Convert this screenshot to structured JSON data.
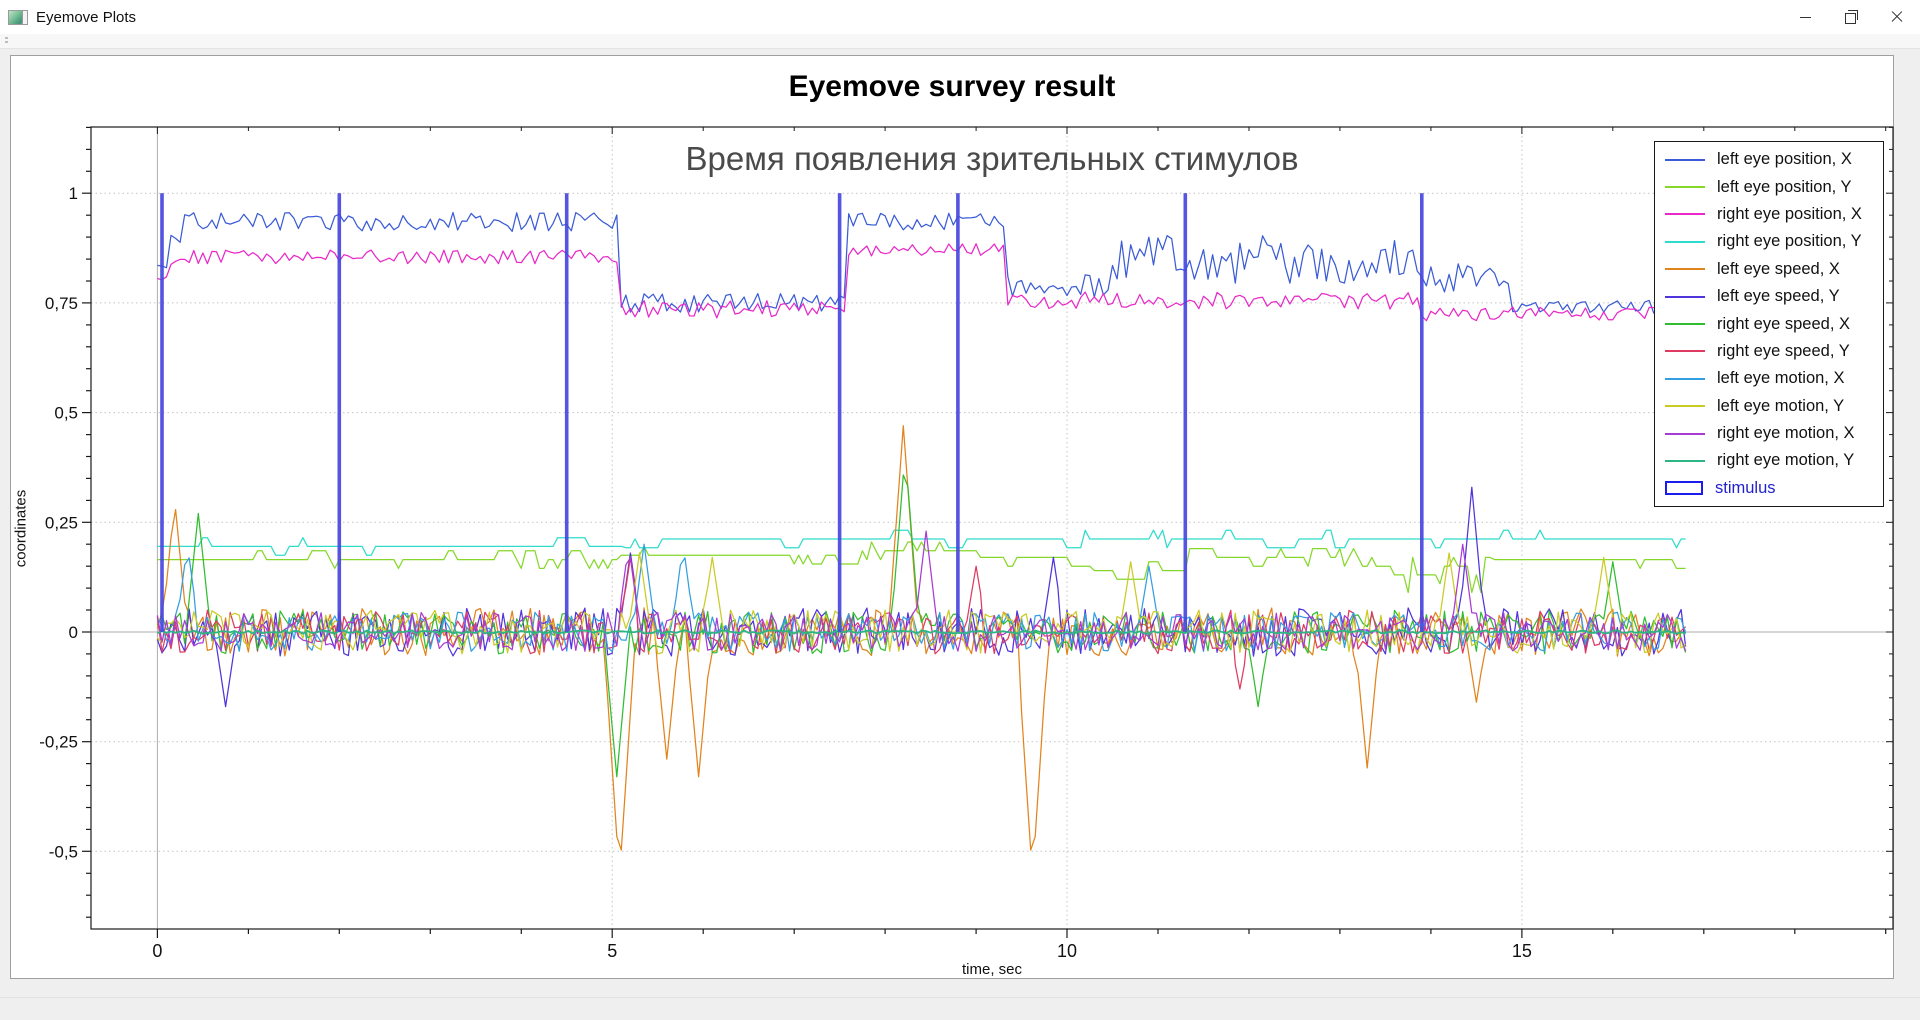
{
  "window": {
    "title": "Eyemove Plots",
    "controls": {
      "minimize": "minimize",
      "restore": "restore",
      "close": "close"
    }
  },
  "panel": {
    "title": "Eyemove survey result"
  },
  "chart_data": {
    "type": "line",
    "title": "Время появления зрительных стимулов",
    "xlabel": "time, sec",
    "ylabel": "coordinates",
    "xlim": [
      -0.73,
      19.08
    ],
    "ylim": [
      -0.677,
      1.151
    ],
    "x_major_ticks": [
      0,
      5,
      10,
      15
    ],
    "x_tick_labels": [
      "0",
      "5",
      "10",
      "15"
    ],
    "x_minor_step": 1,
    "y_major_ticks": [
      1,
      0.75,
      0.5,
      0.25,
      0,
      -0.25,
      -0.5
    ],
    "y_tick_labels": [
      "1",
      "0,75",
      "0,5",
      "0,25",
      "0",
      "-0,25",
      "-0,5"
    ],
    "y_minor_step": 0.05,
    "grid": {
      "style": "dotted",
      "color": "#c4c4c4",
      "zero_line_color": "#adadad"
    },
    "legend_position": "top-right",
    "sample_step": 0.05,
    "t_end": 16.8,
    "stimulus": {
      "label": "stimulus",
      "times": [
        0.05,
        2.0,
        4.5,
        7.5,
        8.8,
        11.3,
        13.9
      ],
      "y_from": 0,
      "y_to": 1,
      "line_color": "#4646de",
      "swatch_color": "#1c1cf0",
      "label_color": "#2222cc"
    },
    "series": [
      {
        "name": "left eye position, X",
        "color": "#3b5cd6",
        "seed": 11,
        "width": 1.25,
        "segments": [
          [
            0,
            0.15,
            0.84,
            0.01
          ],
          [
            0.15,
            0.3,
            0.9,
            0.015
          ],
          [
            0.3,
            5.05,
            0.935,
            0.022
          ],
          [
            5.05,
            7.55,
            0.75,
            0.022
          ],
          [
            7.55,
            9.3,
            0.935,
            0.02
          ],
          [
            9.3,
            10.5,
            0.79,
            0.027
          ],
          [
            10.5,
            13.9,
            0.85,
            0.055
          ],
          [
            13.9,
            14.9,
            0.81,
            0.035
          ],
          [
            14.9,
            16.8,
            0.74,
            0.016
          ]
        ],
        "spikes": []
      },
      {
        "name": "left eye position, Y",
        "color": "#85d829",
        "seed": 22,
        "width": 1.25,
        "quantize": 0.02,
        "segments": [
          [
            0,
            5.05,
            0.165,
            0.014
          ],
          [
            5.05,
            7.6,
            0.175,
            0.012
          ],
          [
            7.6,
            9.0,
            0.185,
            0.016
          ],
          [
            9.0,
            10.2,
            0.17,
            0.012
          ],
          [
            10.2,
            11.2,
            0.12,
            0.035
          ],
          [
            11.2,
            13.5,
            0.17,
            0.014
          ],
          [
            13.5,
            14.7,
            0.13,
            0.04
          ],
          [
            14.7,
            16.8,
            0.165,
            0.014
          ]
        ],
        "spikes": []
      },
      {
        "name": "right eye position, X",
        "color": "#e829c8",
        "seed": 33,
        "width": 1.25,
        "segments": [
          [
            0,
            0.15,
            0.81,
            0.01
          ],
          [
            0.15,
            0.3,
            0.84,
            0.01
          ],
          [
            0.3,
            5.05,
            0.855,
            0.016
          ],
          [
            5.05,
            7.55,
            0.735,
            0.02
          ],
          [
            7.55,
            9.3,
            0.87,
            0.015
          ],
          [
            9.3,
            13.9,
            0.755,
            0.02
          ],
          [
            13.9,
            16.8,
            0.725,
            0.016
          ]
        ],
        "spikes": []
      },
      {
        "name": "right eye position, Y",
        "color": "#2edccb",
        "seed": 44,
        "width": 1.25,
        "quantize": 0.02,
        "segments": [
          [
            0,
            5.05,
            0.195,
            0.012
          ],
          [
            5.05,
            16.8,
            0.212,
            0.013
          ]
        ],
        "spikes": []
      },
      {
        "name": "left eye speed, X",
        "color": "#e2841d",
        "seed": 55,
        "width": 1.25,
        "segments": [
          [
            0,
            16.8,
            0,
            0.055
          ]
        ],
        "spikes": [
          [
            0.19,
            0.3
          ],
          [
            5.08,
            -0.56
          ],
          [
            5.6,
            -0.29
          ],
          [
            5.95,
            -0.33
          ],
          [
            8.2,
            0.47
          ],
          [
            9.62,
            -0.56
          ],
          [
            13.3,
            -0.31
          ],
          [
            14.5,
            -0.16
          ]
        ]
      },
      {
        "name": "left eye speed, Y",
        "color": "#5135dc",
        "seed": 66,
        "width": 1.25,
        "segments": [
          [
            0,
            16.8,
            0,
            0.055
          ]
        ],
        "spikes": [
          [
            0.75,
            -0.17
          ],
          [
            5.2,
            0.18
          ],
          [
            9.85,
            0.17
          ],
          [
            14.45,
            0.33
          ]
        ]
      },
      {
        "name": "right eye speed, X",
        "color": "#31bd31",
        "seed": 77,
        "width": 1.25,
        "segments": [
          [
            0,
            16.8,
            0,
            0.05
          ]
        ],
        "spikes": [
          [
            0.45,
            0.27
          ],
          [
            5.05,
            -0.33
          ],
          [
            8.22,
            0.41
          ],
          [
            12.1,
            -0.17
          ],
          [
            16.0,
            0.16
          ]
        ]
      },
      {
        "name": "right eye speed, Y",
        "color": "#df3a62",
        "seed": 88,
        "width": 1.25,
        "segments": [
          [
            0,
            16.8,
            0,
            0.05
          ]
        ],
        "spikes": [
          [
            5.2,
            0.17
          ],
          [
            9.0,
            0.15
          ],
          [
            11.9,
            -0.13
          ]
        ]
      },
      {
        "name": "left eye motion, X",
        "color": "#339fe2",
        "seed": 99,
        "width": 1.25,
        "segments": [
          [
            0,
            16.8,
            0,
            0.045
          ]
        ],
        "spikes": [
          [
            0.33,
            0.2
          ],
          [
            5.35,
            0.2
          ],
          [
            5.78,
            0.2
          ],
          [
            10.9,
            0.15
          ]
        ]
      },
      {
        "name": "left eye motion, Y",
        "color": "#cbcb27",
        "seed": 110,
        "width": 1.25,
        "segments": [
          [
            0,
            16.8,
            0,
            0.05
          ]
        ],
        "spikes": [
          [
            5.3,
            0.18
          ],
          [
            6.1,
            0.17
          ],
          [
            10.7,
            0.16
          ],
          [
            14.2,
            0.18
          ],
          [
            15.9,
            0.17
          ]
        ]
      },
      {
        "name": "right eye motion, X",
        "color": "#a93bd4",
        "seed": 121,
        "width": 1.25,
        "segments": [
          [
            0,
            16.8,
            0,
            0.045
          ]
        ],
        "spikes": [
          [
            5.18,
            0.2
          ],
          [
            8.45,
            0.23
          ],
          [
            14.35,
            0.2
          ]
        ]
      },
      {
        "name": "right eye motion, Y",
        "color": "#2db583",
        "seed": 132,
        "width": 1.8,
        "segments": [
          [
            0,
            16.8,
            0,
            0.004
          ]
        ],
        "spikes": []
      }
    ]
  }
}
